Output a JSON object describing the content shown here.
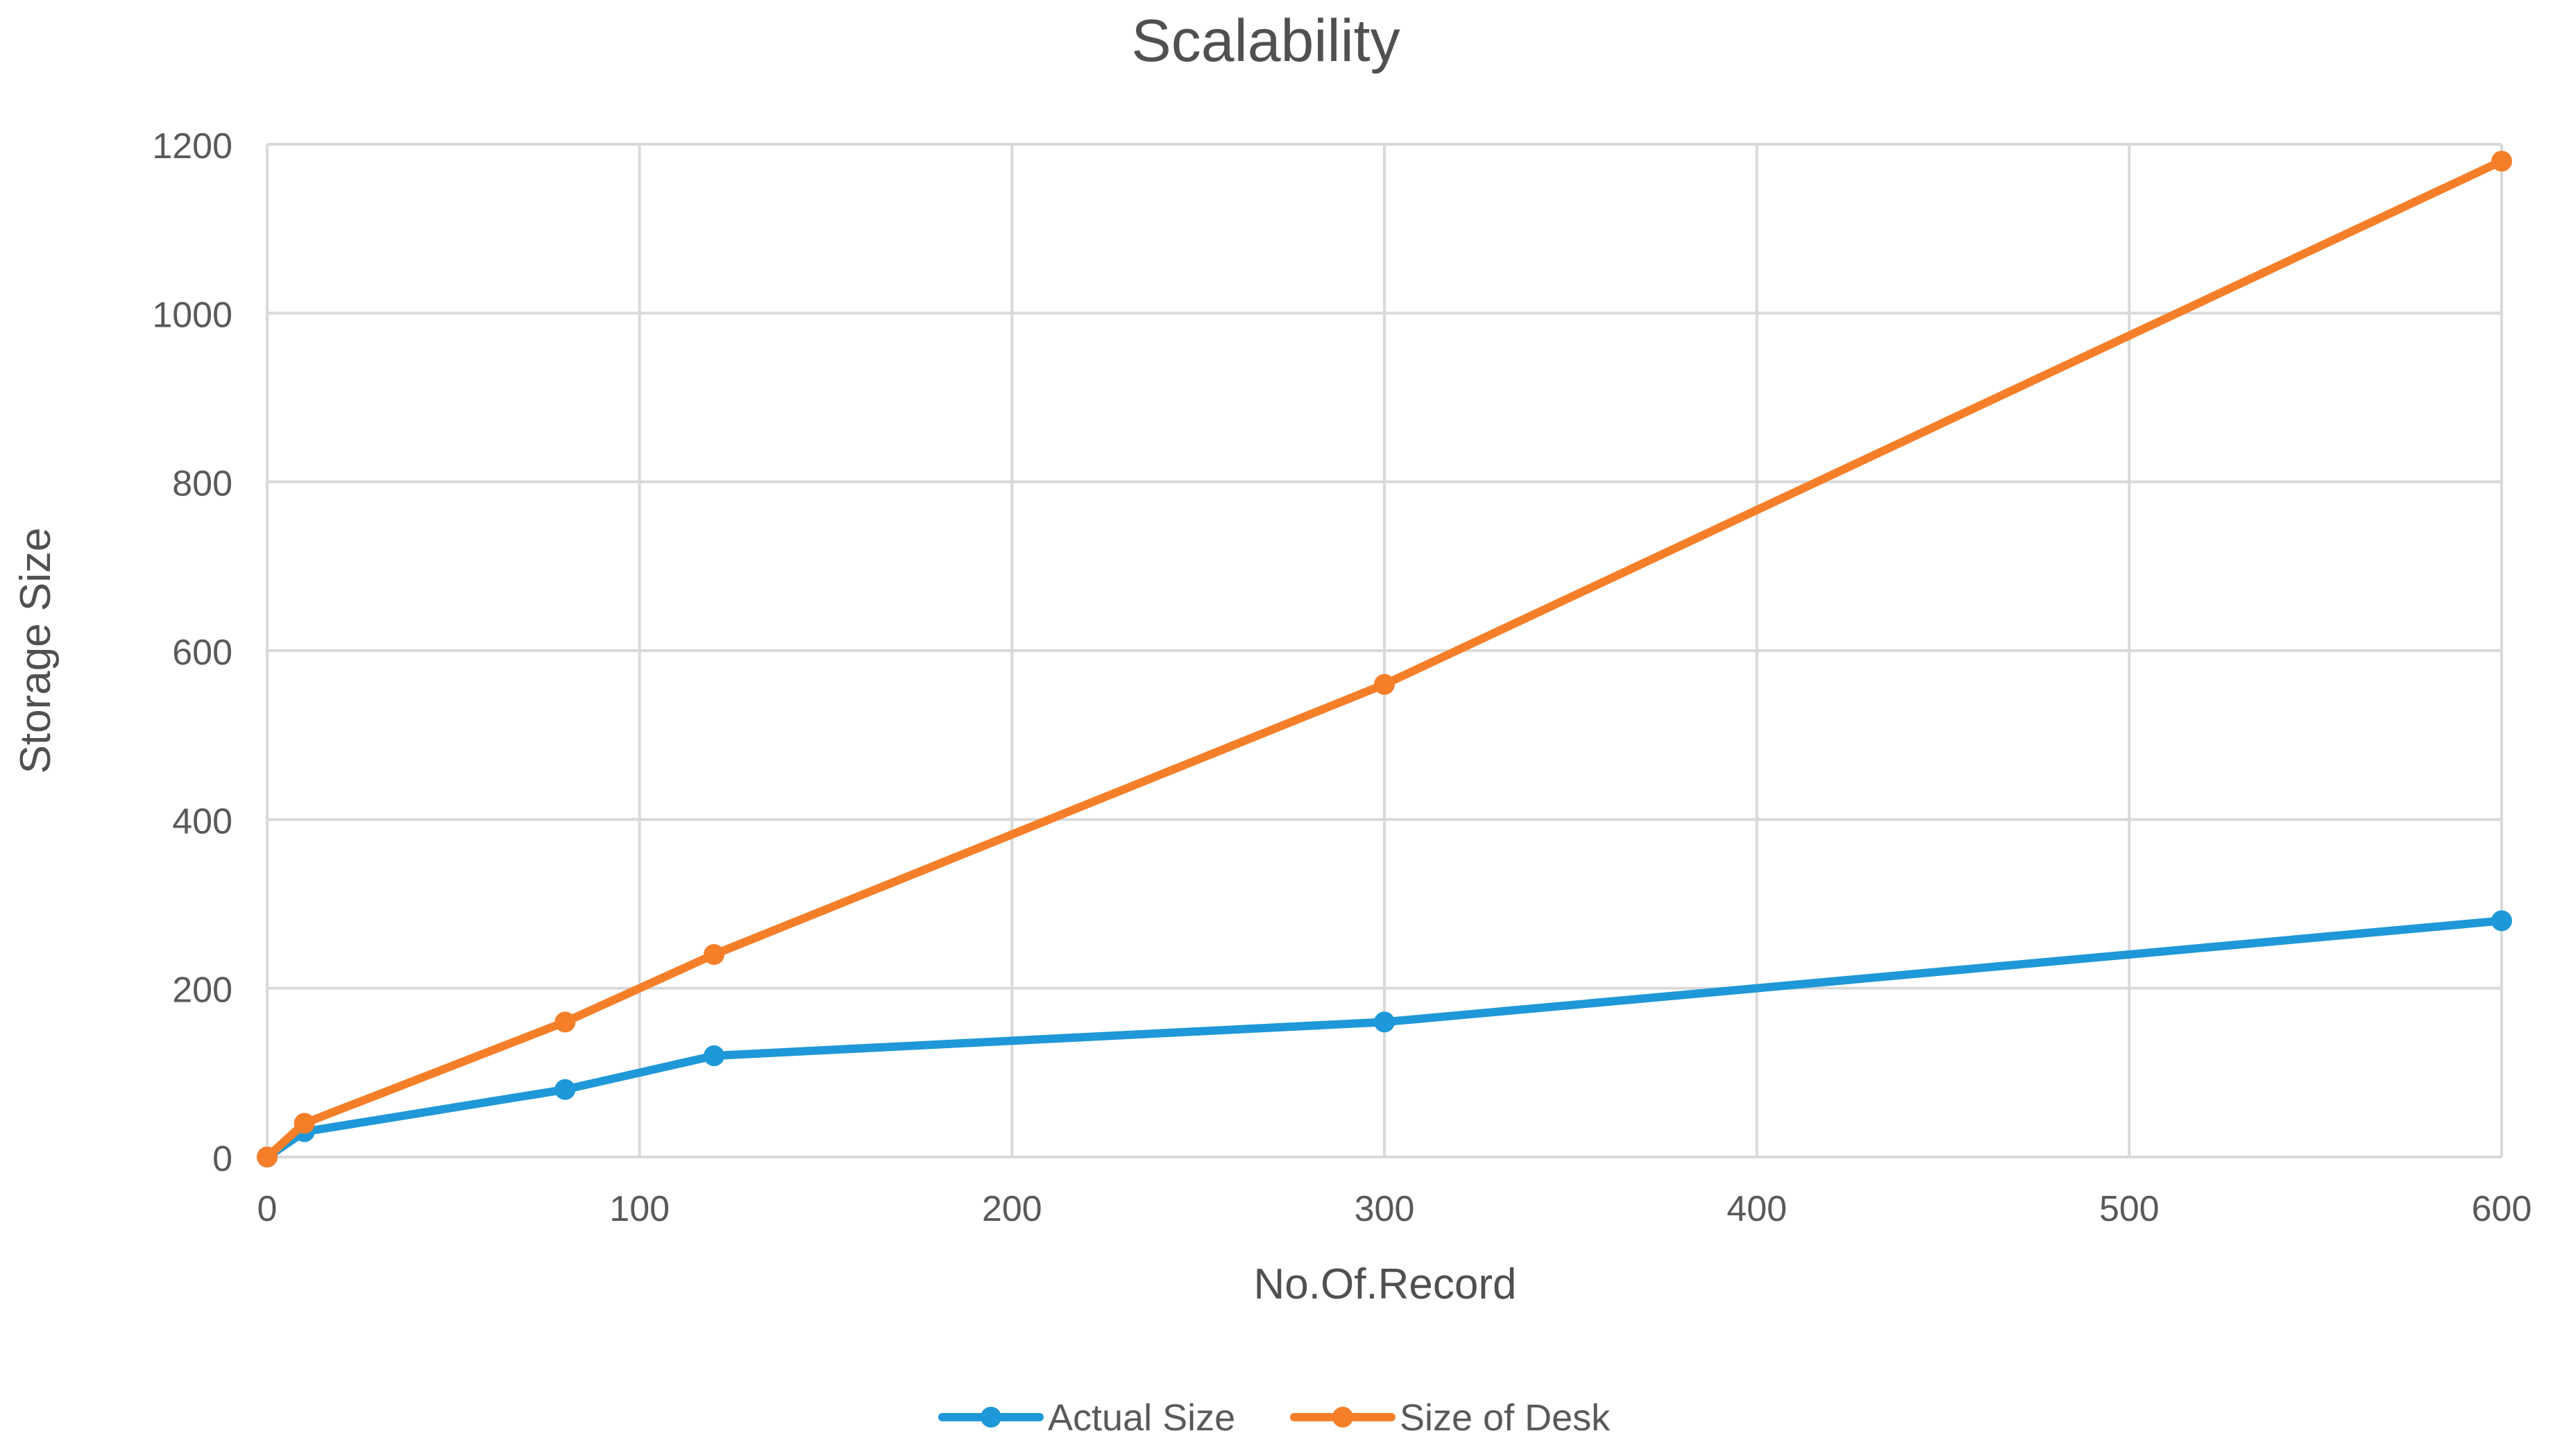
{
  "chart_data": {
    "type": "line",
    "title": "Scalability",
    "xlabel": "No.Of.Record",
    "ylabel": "Storage Size",
    "xlim": [
      0,
      600
    ],
    "ylim": [
      0,
      1200
    ],
    "xticks": [
      0,
      100,
      200,
      300,
      400,
      500,
      600
    ],
    "yticks": [
      0,
      200,
      400,
      600,
      800,
      1000,
      1200
    ],
    "grid": true,
    "legend_position": "bottom",
    "series": [
      {
        "name": "Actual Size",
        "color": "#1E98D8",
        "x": [
          0,
          10,
          80,
          120,
          300,
          600
        ],
        "y": [
          0,
          30,
          80,
          120,
          160,
          280
        ]
      },
      {
        "name": "Size of Desk",
        "color": "#F57F29",
        "x": [
          0,
          10,
          80,
          120,
          300,
          600
        ],
        "y": [
          0,
          40,
          160,
          240,
          560,
          1180
        ]
      }
    ]
  }
}
